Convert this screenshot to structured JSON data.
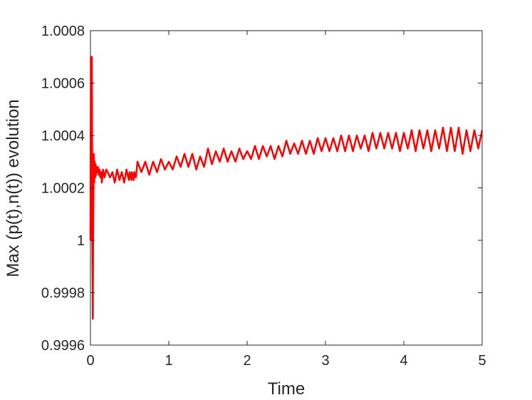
{
  "chart_data": {
    "type": "line",
    "title": "",
    "xlabel": "Time",
    "ylabel": "Max (p(t),n(t)) evolution",
    "xlim": [
      0,
      5
    ],
    "ylim": [
      0.9996,
      1.0008
    ],
    "x_ticks": [
      0,
      1,
      2,
      3,
      4,
      5
    ],
    "x_tick_labels": [
      "0",
      "1",
      "2",
      "3",
      "4",
      "5"
    ],
    "y_ticks": [
      0.9996,
      0.9998,
      1.0,
      1.0002,
      1.0004,
      1.0006,
      1.0008
    ],
    "y_tick_labels": [
      "0.9996",
      "0.9998",
      "1",
      "1.0002",
      "1.0004",
      "1.0006",
      "1.0008"
    ],
    "grid": false,
    "legend": "none",
    "series": [
      {
        "color": "#ff0000",
        "x": [
          0.0,
          0.005,
          0.012,
          0.018,
          0.024,
          0.03,
          0.036,
          0.042,
          0.048,
          0.054,
          0.06,
          0.066,
          0.072,
          0.078,
          0.085,
          0.095,
          0.105,
          0.115,
          0.125,
          0.135,
          0.145,
          0.16,
          0.18,
          0.2,
          0.22,
          0.25,
          0.28,
          0.31,
          0.34,
          0.37,
          0.4,
          0.43,
          0.46,
          0.49,
          0.5,
          0.52,
          0.53,
          0.55,
          0.56,
          0.58,
          0.6,
          0.65,
          0.7,
          0.75,
          0.8,
          0.85,
          0.9,
          0.95,
          1.0,
          1.05,
          1.1,
          1.15,
          1.2,
          1.25,
          1.3,
          1.35,
          1.4,
          1.45,
          1.5,
          1.55,
          1.6,
          1.65,
          1.7,
          1.75,
          1.8,
          1.85,
          1.9,
          1.95,
          2.0,
          2.05,
          2.1,
          2.15,
          2.2,
          2.25,
          2.3,
          2.35,
          2.4,
          2.45,
          2.5,
          2.55,
          2.6,
          2.65,
          2.7,
          2.75,
          2.8,
          2.85,
          2.9,
          2.95,
          3.0,
          3.05,
          3.1,
          3.15,
          3.2,
          3.25,
          3.3,
          3.35,
          3.4,
          3.45,
          3.5,
          3.55,
          3.6,
          3.65,
          3.7,
          3.75,
          3.8,
          3.85,
          3.9,
          3.95,
          4.0,
          4.05,
          4.1,
          4.15,
          4.2,
          4.25,
          4.3,
          4.35,
          4.4,
          4.45,
          4.5,
          4.55,
          4.6,
          4.65,
          4.7,
          4.75,
          4.8,
          4.85,
          4.9,
          4.95,
          5.0
        ],
        "y": [
          1.0,
          1.0007,
          1.0,
          1.0007,
          1.0,
          0.9997,
          1.0001,
          1.00033,
          1.00022,
          1.0003,
          1.00024,
          1.00029,
          1.00025,
          1.00028,
          1.00026,
          1.00028,
          1.00025,
          1.00027,
          1.00024,
          1.00026,
          1.00022,
          1.00027,
          1.00024,
          1.00027,
          1.00026,
          1.00024,
          1.00026,
          1.00022,
          1.00027,
          1.00023,
          1.00026,
          1.00022,
          1.00027,
          1.00023,
          1.00026,
          1.00023,
          1.00026,
          1.00023,
          1.00026,
          1.00024,
          1.0003,
          1.00026,
          1.0003,
          1.00025,
          1.0003,
          1.00026,
          1.00031,
          1.00027,
          1.0003,
          1.00027,
          1.00032,
          1.00028,
          1.00033,
          1.00028,
          1.00033,
          1.00027,
          1.00032,
          1.00028,
          1.00035,
          1.00029,
          1.00034,
          1.0003,
          1.00035,
          1.0003,
          1.00034,
          1.0003,
          1.00035,
          1.00031,
          1.00034,
          1.00031,
          1.00036,
          1.00031,
          1.00036,
          1.00032,
          1.00036,
          1.00031,
          1.00036,
          1.00032,
          1.00038,
          1.00033,
          1.00037,
          1.00033,
          1.00038,
          1.00033,
          1.00038,
          1.00033,
          1.00039,
          1.00034,
          1.00039,
          1.00034,
          1.00039,
          1.00034,
          1.0004,
          1.00034,
          1.0004,
          1.00034,
          1.0004,
          1.00035,
          1.0004,
          1.00034,
          1.00041,
          1.00035,
          1.00041,
          1.00035,
          1.00041,
          1.00035,
          1.00041,
          1.00034,
          1.00041,
          1.00035,
          1.00042,
          1.00034,
          1.00042,
          1.00035,
          1.00042,
          1.00034,
          1.00042,
          1.00035,
          1.00043,
          1.00034,
          1.00043,
          1.00034,
          1.00043,
          1.00033,
          1.00042,
          1.00034,
          1.00042,
          1.00035,
          1.00042
        ]
      }
    ]
  }
}
